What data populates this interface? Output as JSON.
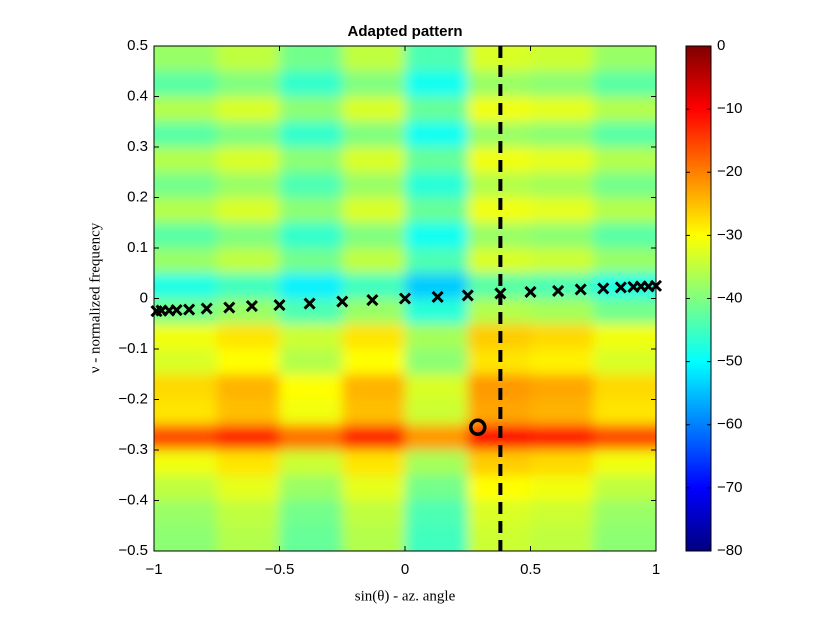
{
  "chart_data": {
    "type": "heatmap",
    "title": "Adapted pattern",
    "xlabel": "sin(θ) - az. angle",
    "ylabel": "ν - normalized frequency",
    "xlim": [
      -1,
      1
    ],
    "ylim": [
      -0.5,
      0.5
    ],
    "xticks": [
      {
        "value": -1,
        "label": "−1"
      },
      {
        "value": -0.5,
        "label": "−0.5"
      },
      0,
      0.5,
      1
    ],
    "yticks": [
      {
        "value": -0.5,
        "label": "−0.5"
      },
      {
        "value": -0.4,
        "label": "−0.4"
      },
      {
        "value": -0.3,
        "label": "−0.3"
      },
      {
        "value": -0.2,
        "label": "−0.2"
      },
      {
        "value": -0.1,
        "label": "−0.1"
      },
      0,
      0.1,
      0.2,
      0.3,
      0.4,
      0.5
    ],
    "clim": [
      -80,
      0
    ],
    "cticks": [
      {
        "value": -80,
        "label": "−80"
      },
      {
        "value": -70,
        "label": "−70"
      },
      {
        "value": -60,
        "label": "−60"
      },
      {
        "value": -50,
        "label": "−50"
      },
      {
        "value": -40,
        "label": "−40"
      },
      {
        "value": -30,
        "label": "−30"
      },
      {
        "value": -20,
        "label": "−20"
      },
      {
        "value": -10,
        "label": "−10"
      },
      0
    ],
    "colormap": "jet",
    "x": [
      -0.875,
      -0.625,
      -0.375,
      -0.125,
      0.125,
      0.375,
      0.625,
      0.875
    ],
    "y": [
      0.475,
      0.425,
      0.375,
      0.325,
      0.275,
      0.225,
      0.175,
      0.125,
      0.075,
      0.025,
      -0.025,
      -0.075,
      -0.125,
      -0.175,
      -0.225,
      -0.275,
      -0.325,
      -0.375,
      -0.425,
      -0.475
    ],
    "z": [
      [
        -38,
        -35,
        -41,
        -35,
        -44,
        -33,
        -34,
        -38
      ],
      [
        -43,
        -40,
        -46,
        -40,
        -49,
        -38,
        -39,
        -43
      ],
      [
        -36,
        -33,
        -39,
        -33,
        -42,
        -31,
        -32,
        -36
      ],
      [
        -43,
        -40,
        -46,
        -40,
        -49,
        -38,
        -39,
        -43
      ],
      [
        -36,
        -33,
        -39,
        -33,
        -42,
        -31,
        -32,
        -36
      ],
      [
        -41,
        -38,
        -44,
        -38,
        -47,
        -36,
        -37,
        -41
      ],
      [
        -36,
        -33,
        -39,
        -33,
        -42,
        -31,
        -32,
        -36
      ],
      [
        -43,
        -40,
        -46,
        -40,
        -49,
        -38,
        -39,
        -43
      ],
      [
        -38,
        -35,
        -41,
        -35,
        -44,
        -33,
        -34,
        -38
      ],
      [
        -48,
        -45,
        -51,
        -45,
        -54,
        -43,
        -44,
        -48
      ],
      [
        -41,
        -38,
        -44,
        -38,
        -47,
        -36,
        -37,
        -41
      ],
      [
        -31,
        -28,
        -34,
        -28,
        -37,
        -26,
        -27,
        -31
      ],
      [
        -33,
        -30,
        -36,
        -30,
        -39,
        -28,
        -29,
        -33
      ],
      [
        -27,
        -24,
        -30,
        -24,
        -33,
        -22,
        -23,
        -27
      ],
      [
        -28,
        -25,
        -31,
        -25,
        -34,
        -23,
        -24,
        -28
      ],
      [
        -16,
        -13,
        -19,
        -13,
        -22,
        -11,
        -12,
        -16
      ],
      [
        -31,
        -28,
        -34,
        -28,
        -37,
        -26,
        -27,
        -31
      ],
      [
        -35,
        -32,
        -38,
        -32,
        -41,
        -30,
        -31,
        -35
      ],
      [
        -38,
        -35,
        -41,
        -35,
        -44,
        -33,
        -34,
        -38
      ],
      [
        -39,
        -36,
        -42,
        -36,
        -45,
        -34,
        -35,
        -39
      ]
    ],
    "markers": {
      "x": [
        -0.99,
        -0.97,
        -0.94,
        -0.91,
        -0.86,
        -0.79,
        -0.7,
        -0.61,
        -0.5,
        -0.38,
        -0.25,
        -0.13,
        0,
        0.13,
        0.25,
        0.38,
        0.5,
        0.61,
        0.7,
        0.79,
        0.86,
        0.91,
        0.94,
        0.97,
        1.0
      ],
      "y": [
        -0.025,
        -0.024,
        -0.024,
        -0.023,
        -0.022,
        -0.02,
        -0.018,
        -0.015,
        -0.013,
        -0.01,
        -0.006,
        -0.003,
        0,
        0.003,
        0.006,
        0.01,
        0.013,
        0.015,
        0.018,
        0.02,
        0.022,
        0.023,
        0.024,
        0.024,
        0.025
      ],
      "color": "#000000"
    },
    "target": {
      "x": 0.29,
      "y": -0.255
    },
    "dashed_x": 0.38
  }
}
